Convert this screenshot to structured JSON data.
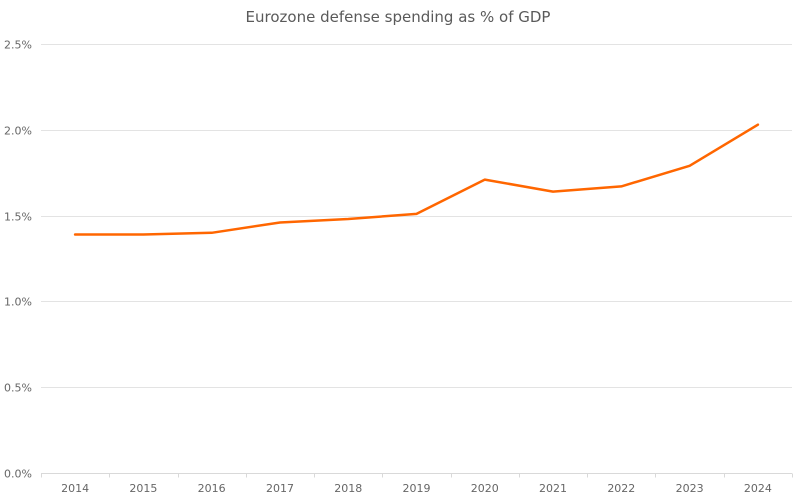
{
  "chart_data": {
    "type": "line",
    "title": "Eurozone defense spending as % of GDP",
    "xlabel": "",
    "ylabel": "",
    "categories": [
      "2014",
      "2015",
      "2016",
      "2017",
      "2018",
      "2019",
      "2020",
      "2021",
      "2022",
      "2023",
      "2024"
    ],
    "series": [
      {
        "name": "Defense spending (% of GDP)",
        "color": "#ff6600",
        "values": [
          1.39,
          1.39,
          1.4,
          1.46,
          1.48,
          1.51,
          1.71,
          1.64,
          1.67,
          1.79,
          2.03
        ]
      }
    ],
    "ylim": [
      0,
      2.5
    ],
    "yticks": [
      0,
      0.5,
      1.0,
      1.5,
      2.0,
      2.5
    ],
    "ytick_labels": [
      "0.0%",
      "0.5%",
      "1.0%",
      "1.5%",
      "2.0%",
      "2.5%"
    ],
    "grid": true,
    "legend": "none"
  }
}
